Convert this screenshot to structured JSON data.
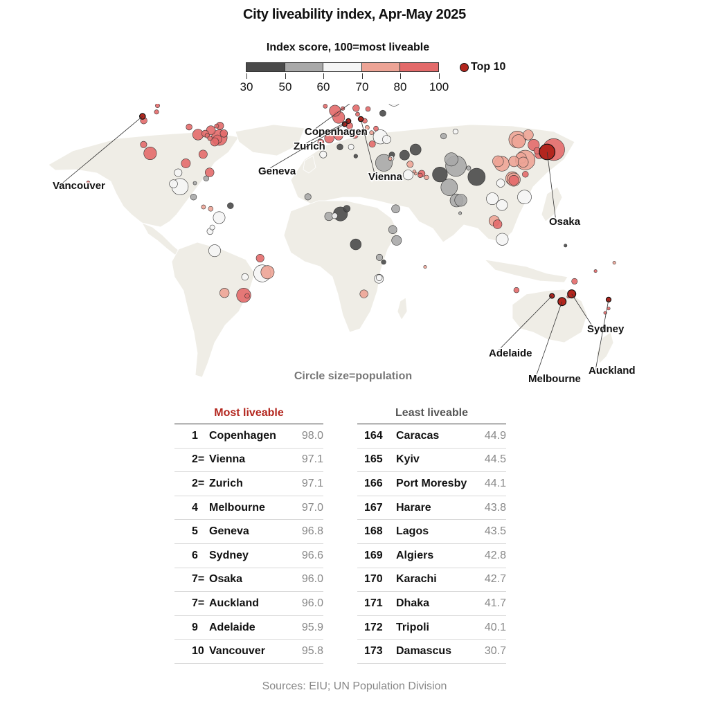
{
  "title": "City liveability index, Apr-May 2025",
  "legend": {
    "title": "Index score, 100=most liveable",
    "ticks": [
      "30",
      "50",
      "60",
      "70",
      "80",
      "100"
    ],
    "bins": [
      {
        "from": 30,
        "to": 50,
        "color": "#4a4a4a"
      },
      {
        "from": 50,
        "to": 60,
        "color": "#a9a9a9"
      },
      {
        "from": 60,
        "to": 70,
        "color": "#f5f5f5"
      },
      {
        "from": 70,
        "to": 80,
        "color": "#eda496"
      },
      {
        "from": 80,
        "to": 100,
        "color": "#e36a6a"
      }
    ],
    "top10_label": "Top 10",
    "top10_color": "#b3261e"
  },
  "circle_note": "Circle size=population",
  "most_liveable": {
    "heading": "Most liveable",
    "rows": [
      {
        "rank": "1",
        "city": "Copenhagen",
        "score": "98.0"
      },
      {
        "rank": "2=",
        "city": "Vienna",
        "score": "97.1"
      },
      {
        "rank": "2=",
        "city": "Zurich",
        "score": "97.1"
      },
      {
        "rank": "4",
        "city": "Melbourne",
        "score": "97.0"
      },
      {
        "rank": "5",
        "city": "Geneva",
        "score": "96.8"
      },
      {
        "rank": "6",
        "city": "Sydney",
        "score": "96.6"
      },
      {
        "rank": "7=",
        "city": "Osaka",
        "score": "96.0"
      },
      {
        "rank": "7=",
        "city": "Auckland",
        "score": "96.0"
      },
      {
        "rank": "9",
        "city": "Adelaide",
        "score": "95.9"
      },
      {
        "rank": "10",
        "city": "Vancouver",
        "score": "95.8"
      }
    ]
  },
  "least_liveable": {
    "heading": "Least liveable",
    "rows": [
      {
        "rank": "164",
        "city": "Caracas",
        "score": "44.9"
      },
      {
        "rank": "165",
        "city": "Kyiv",
        "score": "44.5"
      },
      {
        "rank": "166",
        "city": "Port Moresby",
        "score": "44.1"
      },
      {
        "rank": "167",
        "city": "Harare",
        "score": "43.8"
      },
      {
        "rank": "168",
        "city": "Lagos",
        "score": "43.5"
      },
      {
        "rank": "169",
        "city": "Algiers",
        "score": "42.8"
      },
      {
        "rank": "170",
        "city": "Karachi",
        "score": "42.7"
      },
      {
        "rank": "171",
        "city": "Dhaka",
        "score": "41.7"
      },
      {
        "rank": "172",
        "city": "Tripoli",
        "score": "40.1"
      },
      {
        "rank": "173",
        "city": "Damascus",
        "score": "30.7"
      }
    ]
  },
  "sources": "Sources: EIU; UN Population Division",
  "chart_data": {
    "type": "scatter",
    "title": "City liveability index, Apr-May 2025",
    "encoding": {
      "x": "longitude",
      "y": "latitude",
      "color": "index score",
      "size": "population (millions, approx.)"
    },
    "top10": [
      {
        "name": "Copenhagen",
        "lon": 12.6,
        "lat": 55.7,
        "score": 98.0,
        "pop": 1.4,
        "labeled": true
      },
      {
        "name": "Vienna",
        "lon": 16.4,
        "lat": 48.2,
        "score": 97.1,
        "pop": 2.0,
        "labeled": true
      },
      {
        "name": "Zurich",
        "lon": 8.5,
        "lat": 47.4,
        "score": 97.1,
        "pop": 1.4,
        "labeled": true
      },
      {
        "name": "Melbourne",
        "lon": 145.0,
        "lat": -37.8,
        "score": 97.0,
        "pop": 5.2,
        "labeled": true
      },
      {
        "name": "Geneva",
        "lon": 6.1,
        "lat": 46.2,
        "score": 96.8,
        "pop": 0.6,
        "labeled": true
      },
      {
        "name": "Sydney",
        "lon": 151.2,
        "lat": -33.9,
        "score": 96.6,
        "pop": 5.1,
        "labeled": true
      },
      {
        "name": "Osaka",
        "lon": 135.5,
        "lat": 34.7,
        "score": 96.0,
        "pop": 19.0,
        "labeled": true
      },
      {
        "name": "Auckland",
        "lon": 174.8,
        "lat": -36.8,
        "score": 96.0,
        "pop": 1.7,
        "labeled": true
      },
      {
        "name": "Adelaide",
        "lon": 138.6,
        "lat": -34.9,
        "score": 95.9,
        "pop": 1.4,
        "labeled": true
      },
      {
        "name": "Vancouver",
        "lon": -123.1,
        "lat": 49.3,
        "score": 95.8,
        "pop": 2.6,
        "labeled": true
      }
    ],
    "cities": [
      {
        "lon": -114.1,
        "lat": 51.0,
        "score": 93,
        "pop": 1.5
      },
      {
        "lon": -113.5,
        "lat": 53.5,
        "score": 92,
        "pop": 1.4
      },
      {
        "lon": -79.4,
        "lat": 43.7,
        "score": 93,
        "pop": 6.3
      },
      {
        "lon": -73.6,
        "lat": 45.5,
        "score": 91,
        "pop": 4.3
      },
      {
        "lon": -75.7,
        "lat": 45.4,
        "score": 92,
        "pop": 1.4
      },
      {
        "lon": -122.4,
        "lat": 37.8,
        "score": 88,
        "pop": 3.3
      },
      {
        "lon": -118.2,
        "lat": 34.1,
        "score": 85,
        "pop": 12.5
      },
      {
        "lon": -122.3,
        "lat": 47.6,
        "score": 88,
        "pop": 3.5
      },
      {
        "lon": -87.6,
        "lat": 41.9,
        "score": 85,
        "pop": 8.9
      },
      {
        "lon": -74.0,
        "lat": 40.7,
        "score": 82,
        "pop": 18.8
      },
      {
        "lon": -71.1,
        "lat": 42.4,
        "score": 88,
        "pop": 4.3
      },
      {
        "lon": -77.0,
        "lat": 38.9,
        "score": 87,
        "pop": 5.3
      },
      {
        "lon": -75.2,
        "lat": 40.0,
        "score": 85,
        "pop": 5.7
      },
      {
        "lon": -83.0,
        "lat": 42.3,
        "score": 84,
        "pop": 3.7
      },
      {
        "lon": -84.4,
        "lat": 33.7,
        "score": 84,
        "pop": 5.5
      },
      {
        "lon": -95.4,
        "lat": 29.8,
        "score": 83,
        "pop": 6.4
      },
      {
        "lon": -80.2,
        "lat": 25.8,
        "score": 83,
        "pop": 6.1
      },
      {
        "lon": -93.3,
        "lat": 45.0,
        "score": 88,
        "pop": 2.9
      },
      {
        "lon": -81.7,
        "lat": 41.5,
        "score": 86,
        "pop": 1.7
      },
      {
        "lon": -80.0,
        "lat": 40.4,
        "score": 87,
        "pop": 1.7
      },
      {
        "lon": -157.8,
        "lat": 21.3,
        "score": 90,
        "pop": 0.9
      },
      {
        "lon": -99.1,
        "lat": 19.4,
        "score": 65,
        "pop": 21.0
      },
      {
        "lon": -103.3,
        "lat": 20.7,
        "score": 66,
        "pop": 5.1
      },
      {
        "lon": -100.3,
        "lat": 25.7,
        "score": 68,
        "pop": 4.7
      },
      {
        "lon": -89.6,
        "lat": 21.0,
        "score": 55,
        "pop": 1.0
      },
      {
        "lon": -82.4,
        "lat": 23.1,
        "score": 50,
        "pop": 2.1
      },
      {
        "lon": -79.5,
        "lat": 9.0,
        "score": 70,
        "pop": 1.8
      },
      {
        "lon": -84.1,
        "lat": 9.9,
        "score": 72,
        "pop": 1.4
      },
      {
        "lon": -90.5,
        "lat": 14.6,
        "score": 58,
        "pop": 2.9
      },
      {
        "lon": -66.9,
        "lat": 10.5,
        "score": 44.9,
        "pop": 2.9
      },
      {
        "lon": -74.1,
        "lat": 4.7,
        "score": 65,
        "pop": 11.0
      },
      {
        "lon": -78.5,
        "lat": -0.2,
        "score": 62,
        "pop": 1.9
      },
      {
        "lon": -79.9,
        "lat": -2.2,
        "score": 60,
        "pop": 3.0
      },
      {
        "lon": -77.0,
        "lat": -12.0,
        "score": 63,
        "pop": 11.0
      },
      {
        "lon": -47.9,
        "lat": -15.8,
        "score": 80,
        "pop": 4.8
      },
      {
        "lon": -46.6,
        "lat": -23.5,
        "score": 68,
        "pop": 22.4
      },
      {
        "lon": -43.2,
        "lat": -22.9,
        "score": 75,
        "pop": 13.6
      },
      {
        "lon": -57.6,
        "lat": -25.3,
        "score": 63,
        "pop": 3.5
      },
      {
        "lon": -70.7,
        "lat": -33.4,
        "score": 78,
        "pop": 6.9
      },
      {
        "lon": -58.4,
        "lat": -34.6,
        "score": 82,
        "pop": 15.6
      },
      {
        "lon": -56.2,
        "lat": -34.9,
        "score": 80,
        "pop": 1.8
      },
      {
        "lon": -0.1,
        "lat": 51.5,
        "score": 90,
        "pop": 9.6
      },
      {
        "lon": 2.3,
        "lat": 48.9,
        "score": 89,
        "pop": 11.2
      },
      {
        "lon": 13.4,
        "lat": 52.5,
        "score": 92,
        "pop": 3.6
      },
      {
        "lon": 4.9,
        "lat": 52.4,
        "score": 94,
        "pop": 1.2
      },
      {
        "lon": -6.3,
        "lat": 53.3,
        "score": 91,
        "pop": 1.3
      },
      {
        "lon": -3.7,
        "lat": 40.4,
        "score": 90,
        "pop": 6.8
      },
      {
        "lon": 2.2,
        "lat": 41.4,
        "score": 91,
        "pop": 5.7
      },
      {
        "lon": 12.5,
        "lat": 41.9,
        "score": 86,
        "pop": 4.3
      },
      {
        "lon": 9.2,
        "lat": 45.5,
        "score": 91,
        "pop": 3.2
      },
      {
        "lon": 10.8,
        "lat": 59.9,
        "score": 92,
        "pop": 1.1
      },
      {
        "lon": 18.1,
        "lat": 59.3,
        "score": 95,
        "pop": 1.7
      },
      {
        "lon": 24.9,
        "lat": 60.2,
        "score": 95,
        "pop": 1.3
      },
      {
        "lon": 21.0,
        "lat": 52.2,
        "score": 88,
        "pop": 1.8
      },
      {
        "lon": 14.4,
        "lat": 50.1,
        "score": 92,
        "pop": 1.3
      },
      {
        "lon": 19.0,
        "lat": 47.5,
        "score": 87,
        "pop": 1.8
      },
      {
        "lon": 26.1,
        "lat": 44.4,
        "score": 80,
        "pop": 1.8
      },
      {
        "lon": 23.3,
        "lat": 42.7,
        "score": 76,
        "pop": 1.3
      },
      {
        "lon": 20.5,
        "lat": 44.8,
        "score": 70,
        "pop": 1.4
      },
      {
        "lon": 23.7,
        "lat": 38.0,
        "score": 84,
        "pop": 3.2
      },
      {
        "lon": 28.9,
        "lat": 41.0,
        "score": 62,
        "pop": 15.8
      },
      {
        "lon": 32.9,
        "lat": 39.9,
        "score": 66,
        "pop": 5.3
      },
      {
        "lon": 37.6,
        "lat": 55.8,
        "score": 66,
        "pop": 12.7
      },
      {
        "lon": 30.3,
        "lat": 59.9,
        "score": 55,
        "pop": 5.5
      },
      {
        "lon": 30.5,
        "lat": 50.5,
        "score": 44.5,
        "pop": 3.0
      },
      {
        "lon": -9.1,
        "lat": 38.7,
        "score": 90,
        "pop": 3.0
      },
      {
        "lon": -21.9,
        "lat": 64.1,
        "score": 90,
        "pop": 0.2
      },
      {
        "lon": 3.1,
        "lat": 36.8,
        "score": 42.8,
        "pop": 2.9
      },
      {
        "lon": 13.2,
        "lat": 32.9,
        "score": 40.1,
        "pop": 1.2
      },
      {
        "lon": 10.2,
        "lat": 36.8,
        "score": 60,
        "pop": 2.5
      },
      {
        "lon": -7.6,
        "lat": 33.6,
        "score": 65,
        "pop": 3.8
      },
      {
        "lon": 31.2,
        "lat": 30.0,
        "score": 55,
        "pop": 22.0
      },
      {
        "lon": 36.3,
        "lat": 33.5,
        "score": 30.7,
        "pop": 2.5
      },
      {
        "lon": 35.2,
        "lat": 31.8,
        "score": 70,
        "pop": 1.0
      },
      {
        "lon": 35.9,
        "lat": 32.0,
        "score": 65,
        "pop": 2.2
      },
      {
        "lon": 44.4,
        "lat": 33.3,
        "score": 45,
        "pop": 7.5
      },
      {
        "lon": 51.4,
        "lat": 35.7,
        "score": 48,
        "pop": 9.4
      },
      {
        "lon": 46.7,
        "lat": 24.7,
        "score": 65,
        "pop": 7.7
      },
      {
        "lon": 55.3,
        "lat": 25.3,
        "score": 80,
        "pop": 3.5
      },
      {
        "lon": 54.4,
        "lat": 24.5,
        "score": 80,
        "pop": 1.6
      },
      {
        "lon": 51.5,
        "lat": 25.3,
        "score": 75,
        "pop": 0.7
      },
      {
        "lon": 50.6,
        "lat": 26.2,
        "score": 72,
        "pop": 0.7
      },
      {
        "lon": 58.4,
        "lat": 23.6,
        "score": 74,
        "pop": 1.6
      },
      {
        "lon": 47.9,
        "lat": 29.4,
        "score": 72,
        "pop": 3.3
      },
      {
        "lon": 69.3,
        "lat": 41.3,
        "score": 58,
        "pop": 2.6
      },
      {
        "lon": 76.9,
        "lat": 43.2,
        "score": 60,
        "pop": 2.0
      },
      {
        "lon": 67.0,
        "lat": 24.9,
        "score": 42.7,
        "pop": 17.2
      },
      {
        "lon": 74.3,
        "lat": 31.5,
        "score": 52,
        "pop": 13.5
      },
      {
        "lon": 77.2,
        "lat": 28.6,
        "score": 56,
        "pop": 33.0
      },
      {
        "lon": 72.9,
        "lat": 19.1,
        "score": 58,
        "pop": 21.3
      },
      {
        "lon": 80.3,
        "lat": 13.1,
        "score": 54,
        "pop": 11.5
      },
      {
        "lon": 77.6,
        "lat": 13.0,
        "score": 58,
        "pop": 13.2
      },
      {
        "lon": 90.4,
        "lat": 23.8,
        "score": 41.7,
        "pop": 23.0
      },
      {
        "lon": 79.9,
        "lat": 6.9,
        "score": 55,
        "pop": 0.6
      },
      {
        "lon": 85.3,
        "lat": 27.7,
        "score": 58,
        "pop": 1.5
      },
      {
        "lon": 100.5,
        "lat": 13.8,
        "score": 65,
        "pop": 11.0
      },
      {
        "lon": 106.7,
        "lat": 10.8,
        "score": 60,
        "pop": 9.3
      },
      {
        "lon": 105.8,
        "lat": 21.0,
        "score": 61,
        "pop": 5.2
      },
      {
        "lon": 101.7,
        "lat": 3.1,
        "score": 78,
        "pop": 8.6
      },
      {
        "lon": 103.8,
        "lat": 1.4,
        "score": 83,
        "pop": 6.1
      },
      {
        "lon": 106.8,
        "lat": -6.2,
        "score": 62,
        "pop": 11.2
      },
      {
        "lon": 121.0,
        "lat": 14.6,
        "score": 62,
        "pop": 14.7
      },
      {
        "lon": 116.4,
        "lat": 39.9,
        "score": 76,
        "pop": 22.0
      },
      {
        "lon": 121.5,
        "lat": 31.2,
        "score": 78,
        "pop": 29.9
      },
      {
        "lon": 113.3,
        "lat": 23.1,
        "score": 72,
        "pop": 14.3
      },
      {
        "lon": 114.1,
        "lat": 22.6,
        "score": 70,
        "pop": 13.5
      },
      {
        "lon": 114.2,
        "lat": 22.3,
        "score": 82,
        "pop": 7.7
      },
      {
        "lon": 121.6,
        "lat": 25.0,
        "score": 84,
        "pop": 2.8
      },
      {
        "lon": 126.9,
        "lat": 37.6,
        "score": 90,
        "pop": 10.0
      },
      {
        "lon": 129.1,
        "lat": 35.2,
        "score": 88,
        "pop": 3.4
      },
      {
        "lon": 139.7,
        "lat": 35.7,
        "score": 93,
        "pop": 37.0
      },
      {
        "lon": 130.4,
        "lat": 33.6,
        "score": 92,
        "pop": 5.5
      },
      {
        "lon": 104.1,
        "lat": 30.7,
        "score": 70,
        "pop": 9.3
      },
      {
        "lon": 106.6,
        "lat": 29.6,
        "score": 72,
        "pop": 17.0
      },
      {
        "lon": 117.2,
        "lat": 39.1,
        "score": 74,
        "pop": 14.0
      },
      {
        "lon": 123.4,
        "lat": 41.8,
        "score": 75,
        "pop": 8.0
      },
      {
        "lon": 114.3,
        "lat": 30.6,
        "score": 73,
        "pop": 8.6
      },
      {
        "lon": 118.8,
        "lat": 32.1,
        "score": 77,
        "pop": 9.0
      },
      {
        "lon": 120.2,
        "lat": 30.3,
        "score": 78,
        "pop": 8.2
      },
      {
        "lon": 3.4,
        "lat": 6.5,
        "score": 43.5,
        "pop": 15.4
      },
      {
        "lon": 7.5,
        "lat": 9.1,
        "score": 47,
        "pop": 3.6
      },
      {
        "lon": -17.4,
        "lat": 14.7,
        "score": 58,
        "pop": 3.3
      },
      {
        "lon": -4.0,
        "lat": 5.3,
        "score": 55,
        "pop": 5.5
      },
      {
        "lon": -0.2,
        "lat": 5.6,
        "score": 60,
        "pop": 2.5
      },
      {
        "lon": 38.7,
        "lat": 9.0,
        "score": 52,
        "pop": 5.2
      },
      {
        "lon": 36.8,
        "lat": -1.3,
        "score": 58,
        "pop": 5.3
      },
      {
        "lon": 39.3,
        "lat": -6.8,
        "score": 54,
        "pop": 7.4
      },
      {
        "lon": 13.2,
        "lat": -8.8,
        "score": 48,
        "pop": 9.3
      },
      {
        "lon": 28.3,
        "lat": -15.4,
        "score": 55,
        "pop": 3.2
      },
      {
        "lon": 31.0,
        "lat": -17.8,
        "score": 43.8,
        "pop": 1.6
      },
      {
        "lon": 28.0,
        "lat": -26.2,
        "score": 66,
        "pop": 6.3
      },
      {
        "lon": 28.2,
        "lat": -25.7,
        "score": 68,
        "pop": 2.8
      },
      {
        "lon": 18.4,
        "lat": -33.9,
        "score": 72,
        "pop": 4.9
      },
      {
        "lon": 57.5,
        "lat": -20.2,
        "score": 70,
        "pop": 0.2
      },
      {
        "lon": 147.2,
        "lat": -9.4,
        "score": 44.1,
        "pop": 0.4
      },
      {
        "lon": 153.0,
        "lat": -27.5,
        "score": 94,
        "pop": 2.6
      },
      {
        "lon": 115.9,
        "lat": -32.0,
        "score": 95,
        "pop": 2.2
      },
      {
        "lon": 149.1,
        "lat": -35.3,
        "score": 94,
        "pop": 0.5
      },
      {
        "lon": 174.8,
        "lat": -41.3,
        "score": 93,
        "pop": 0.4
      },
      {
        "lon": 172.6,
        "lat": -43.5,
        "score": 92,
        "pop": 0.4
      },
      {
        "lon": 166.4,
        "lat": -22.3,
        "score": 80,
        "pop": 0.1
      },
      {
        "lon": 178.4,
        "lat": -18.1,
        "score": 72,
        "pop": 0.2
      }
    ]
  }
}
